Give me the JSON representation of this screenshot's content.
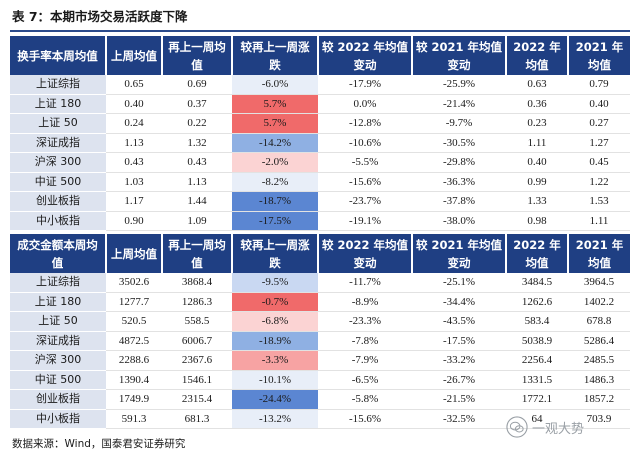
{
  "title": "表 7：本期市场交易活跃度下降",
  "colors": {
    "header_bg": "#1f3f83",
    "name_col_bg": "#dde3ef",
    "red_strong": "#f06a6a",
    "red_mid": "#f7a3a3",
    "red_light": "#fbd3d3",
    "blue_strong": "#5b86d2",
    "blue_mid": "#8fb0e3",
    "blue_light": "#c9d8f2",
    "blue_pale": "#e8eef8"
  },
  "turnover_table": {
    "headers": [
      "换手率本周均值",
      "上周均值",
      "再上一周均值",
      "较再上一周涨跌",
      "较 2022 年均值变动",
      "较 2021 年均值变动",
      "2022 年均值",
      "2021 年均值"
    ],
    "rows": [
      [
        "上证综指",
        "0.65",
        "0.69",
        "-6.0%",
        "-17.9%",
        "-25.9%",
        "0.63",
        "0.79"
      ],
      [
        "上证 180",
        "0.40",
        "0.37",
        "5.7%",
        "0.0%",
        "-21.4%",
        "0.36",
        "0.40"
      ],
      [
        "上证 50",
        "0.24",
        "0.22",
        "5.7%",
        "-12.8%",
        "-9.7%",
        "0.23",
        "0.27"
      ],
      [
        "深证成指",
        "1.13",
        "1.32",
        "-14.2%",
        "-10.6%",
        "-30.5%",
        "1.11",
        "1.27"
      ],
      [
        "沪深 300",
        "0.43",
        "0.43",
        "-2.0%",
        "-5.5%",
        "-29.8%",
        "0.40",
        "0.45"
      ],
      [
        "中证 500",
        "1.03",
        "1.13",
        "-8.2%",
        "-15.6%",
        "-36.3%",
        "0.99",
        "1.22"
      ],
      [
        "创业板指",
        "1.17",
        "1.44",
        "-18.7%",
        "-23.7%",
        "-37.8%",
        "1.33",
        "1.53"
      ],
      [
        "中小板指",
        "0.90",
        "1.09",
        "-17.5%",
        "-19.1%",
        "-38.0%",
        "0.98",
        "1.11"
      ]
    ],
    "change_tone": [
      "blue_pale",
      "red_strong",
      "red_strong",
      "blue_mid",
      "red_light",
      "blue_pale",
      "blue_strong",
      "blue_strong"
    ]
  },
  "volume_table": {
    "headers": [
      "成交金额本周均值",
      "上周均值",
      "再上一周均值",
      "较再上一周涨跌",
      "较 2022 年均值变动",
      "较 2021 年均值变动",
      "2022 年均值",
      "2021 年均值"
    ],
    "rows": [
      [
        "上证综指",
        "3502.6",
        "3868.4",
        "-9.5%",
        "-11.7%",
        "-25.1%",
        "3484.5",
        "3964.5"
      ],
      [
        "上证 180",
        "1277.7",
        "1286.3",
        "-0.7%",
        "-8.9%",
        "-34.4%",
        "1262.6",
        "1402.2"
      ],
      [
        "上证 50",
        "520.5",
        "558.5",
        "-6.8%",
        "-23.3%",
        "-43.5%",
        "583.4",
        "678.8"
      ],
      [
        "深证成指",
        "4872.5",
        "6006.7",
        "-18.9%",
        "-7.8%",
        "-17.5%",
        "5038.9",
        "5286.4"
      ],
      [
        "沪深 300",
        "2288.6",
        "2367.6",
        "-3.3%",
        "-7.9%",
        "-33.2%",
        "2256.4",
        "2485.5"
      ],
      [
        "中证 500",
        "1390.4",
        "1546.1",
        "-10.1%",
        "-6.5%",
        "-26.7%",
        "1331.5",
        "1486.3"
      ],
      [
        "创业板指",
        "1749.9",
        "2315.4",
        "-24.4%",
        "-5.8%",
        "-21.5%",
        "1772.1",
        "1857.2"
      ],
      [
        "中小板指",
        "591.3",
        "681.3",
        "-13.2%",
        "-15.6%",
        "-32.5%",
        "64",
        "703.9"
      ]
    ],
    "change_tone": [
      "blue_light",
      "red_strong",
      "red_light",
      "blue_mid",
      "red_mid",
      "blue_pale",
      "blue_strong",
      "blue_pale"
    ]
  },
  "source": "数据来源：Wind，国泰君安证券研究",
  "watermark": {
    "text": "一观大势",
    "icon": "wechat-logo-icon"
  }
}
